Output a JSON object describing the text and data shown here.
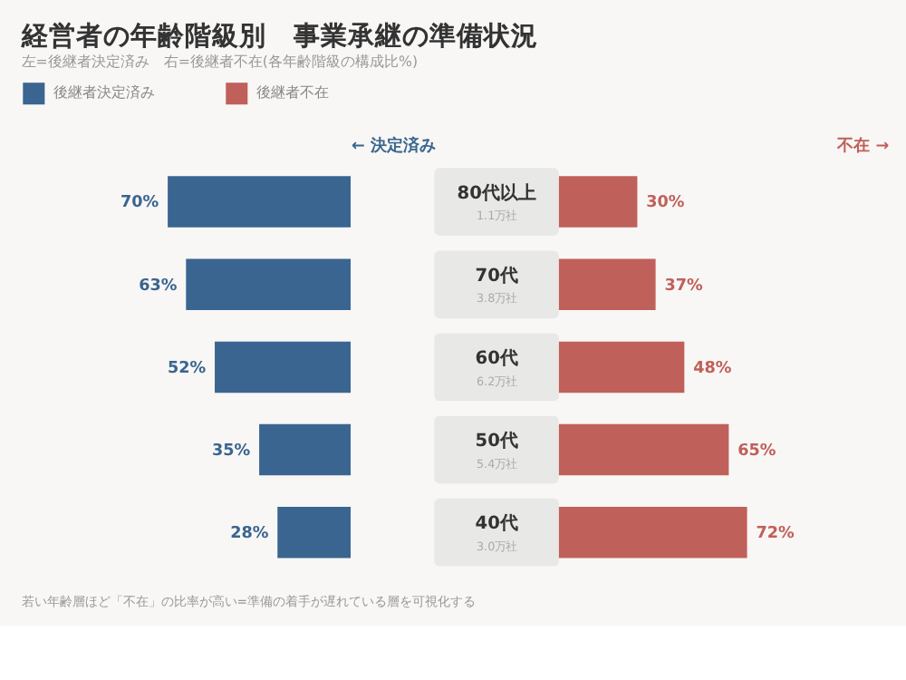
{
  "chart_data": [
    {
      "type": "bar",
      "orientation": "horizontal",
      "title": "経営者の年齢階級別　事業承継の準備状況",
      "subtitle": "左=後継者決定済み　右=後継者不在(各年齢階級の構成比%)",
      "xlabel": "← 決定済み",
      "tick_labels": "y",
      "categories": [
        "80代以上",
        "70代",
        "60代",
        "50代",
        "40代"
      ],
      "series": [
        {
          "name": "後継者決定済み",
          "color": "#3a6590",
          "values": [
            70,
            63,
            52,
            35,
            28
          ],
          "value_labels": [
            "70%",
            "63%",
            "52%",
            "35%",
            "28%"
          ]
        }
      ],
      "legend": "top left",
      "annotations": [
        "1.1万社",
        "3.8万社",
        "6.2万社",
        "5.4万社",
        "3.0万社",
        "若い年齢層ほど「不在」の比率が高い=準備の着手が遅れている層を可視化する"
      ]
    },
    {
      "type": "bar",
      "orientation": "horizontal",
      "xlabel": "不在 →",
      "tick_labels": false,
      "categories": [
        "80代以上",
        "70代",
        "60代",
        "50代",
        "40代"
      ],
      "series": [
        {
          "name": "後継者不在",
          "color": "#c0605a",
          "values": [
            30,
            37,
            48,
            65,
            72
          ],
          "value_labels": [
            "30%",
            "37%",
            "48%",
            "65%",
            "72%"
          ]
        }
      ],
      "legend": "top left"
    }
  ]
}
